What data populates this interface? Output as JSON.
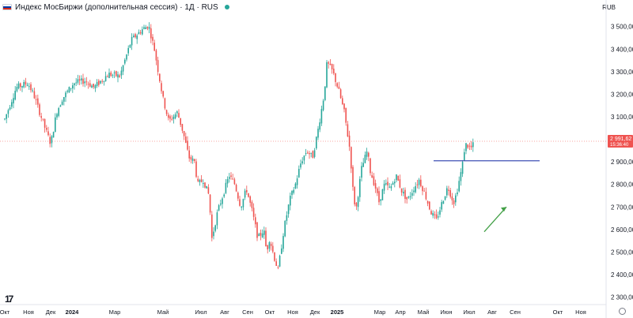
{
  "header": {
    "title": "Индекс МосБиржи (дополнительная сессия) · 1Д · RUS",
    "currency": "RUB"
  },
  "icons": {
    "flag": "russia-flag-icon",
    "status": "market-status-dot-icon",
    "logo": "tradingview-logo-icon",
    "settings": "settings-icon"
  },
  "price_tag": {
    "value": "2 991,62",
    "countdown": "15:36:40"
  },
  "logo_text": "17",
  "colors": {
    "up": "#26a69a",
    "down": "#ef5350",
    "level_line": "#3f51b5",
    "arrow": "#43a047",
    "price_tag": "#ef5350"
  },
  "chart_data": {
    "type": "candlestick",
    "title": "Индекс МосБиржи (дополнительная сессия) · 1Д · RUS",
    "currency": "RUB",
    "x_labels": [
      "Окт",
      "Ноя",
      "Дек",
      "2024",
      "Мар",
      "Май",
      "Июл",
      "Авг",
      "Сен",
      "Окт",
      "Ноя",
      "Дек",
      "2025",
      "Мар",
      "Апр",
      "Май",
      "Июн",
      "Июл",
      "Авг",
      "Сен",
      "Окт",
      "Ноя"
    ],
    "y_ticks": [
      2300,
      2400,
      2500,
      2600,
      2700,
      2800,
      2900,
      3000,
      3100,
      3200,
      3300,
      3400,
      3500
    ],
    "y_tick_labels": [
      "2 300,00",
      "2 400,00",
      "2 500,00",
      "2 600,00",
      "2 700,00",
      "2 800,00",
      "2 900,00",
      "3 000,00",
      "3 100,00",
      "3 200,00",
      "3 300,00",
      "3 400,00",
      "3 500,00"
    ],
    "ylim": [
      2260,
      3590
    ],
    "last_price": 2991.62,
    "horizontal_level": 2905,
    "price_path": [
      [
        0,
        3090
      ],
      [
        0.04,
        3230
      ],
      [
        0.08,
        3250
      ],
      [
        0.1,
        3200
      ],
      [
        0.14,
        3050
      ],
      [
        0.16,
        2980
      ],
      [
        0.18,
        3120
      ],
      [
        0.2,
        3180
      ],
      [
        0.24,
        3250
      ],
      [
        0.28,
        3260
      ],
      [
        0.31,
        3230
      ],
      [
        0.36,
        3290
      ],
      [
        0.4,
        3280
      ],
      [
        0.44,
        3440
      ],
      [
        0.48,
        3490
      ],
      [
        0.5,
        3505
      ],
      [
        0.52,
        3400
      ],
      [
        0.55,
        3180
      ],
      [
        0.57,
        3080
      ],
      [
        0.6,
        3120
      ],
      [
        0.62,
        3030
      ],
      [
        0.64,
        2920
      ],
      [
        0.66,
        2900
      ],
      [
        0.67,
        2800
      ],
      [
        0.69,
        2820
      ],
      [
        0.71,
        2750
      ],
      [
        0.72,
        2560
      ],
      [
        0.74,
        2680
      ],
      [
        0.76,
        2760
      ],
      [
        0.78,
        2840
      ],
      [
        0.8,
        2800
      ],
      [
        0.82,
        2700
      ],
      [
        0.84,
        2780
      ],
      [
        0.86,
        2680
      ],
      [
        0.88,
        2560
      ],
      [
        0.9,
        2600
      ],
      [
        0.91,
        2500
      ],
      [
        0.92,
        2560
      ],
      [
        0.94,
        2460
      ],
      [
        0.95,
        2420
      ],
      [
        0.97,
        2600
      ],
      [
        0.99,
        2730
      ],
      [
        1.01,
        2800
      ],
      [
        1.03,
        2900
      ],
      [
        1.05,
        2950
      ],
      [
        1.07,
        2920
      ],
      [
        1.09,
        3050
      ],
      [
        1.11,
        3200
      ],
      [
        1.12,
        3340
      ],
      [
        1.14,
        3300
      ],
      [
        1.16,
        3220
      ],
      [
        1.18,
        3120
      ],
      [
        1.2,
        2950
      ],
      [
        1.21,
        2780
      ],
      [
        1.22,
        2680
      ],
      [
        1.24,
        2870
      ],
      [
        1.26,
        2950
      ],
      [
        1.27,
        2860
      ],
      [
        1.29,
        2780
      ],
      [
        1.3,
        2720
      ],
      [
        1.32,
        2800
      ],
      [
        1.34,
        2780
      ],
      [
        1.36,
        2840
      ],
      [
        1.38,
        2770
      ],
      [
        1.4,
        2730
      ],
      [
        1.42,
        2780
      ],
      [
        1.44,
        2820
      ],
      [
        1.46,
        2760
      ],
      [
        1.48,
        2680
      ],
      [
        1.5,
        2640
      ],
      [
        1.52,
        2720
      ],
      [
        1.54,
        2790
      ],
      [
        1.56,
        2720
      ],
      [
        1.57,
        2760
      ],
      [
        1.59,
        2880
      ],
      [
        1.6,
        2980
      ],
      [
        1.62,
        2960
      ],
      [
        1.63,
        2980
      ]
    ],
    "annotations": [
      {
        "type": "horizontal-line",
        "value": 2905,
        "from": "Май",
        "to": "Авг"
      },
      {
        "type": "arrow",
        "direction": "up-right",
        "from": [
          2590,
          "Июл"
        ],
        "to": [
          2700,
          "Авг"
        ]
      }
    ]
  }
}
